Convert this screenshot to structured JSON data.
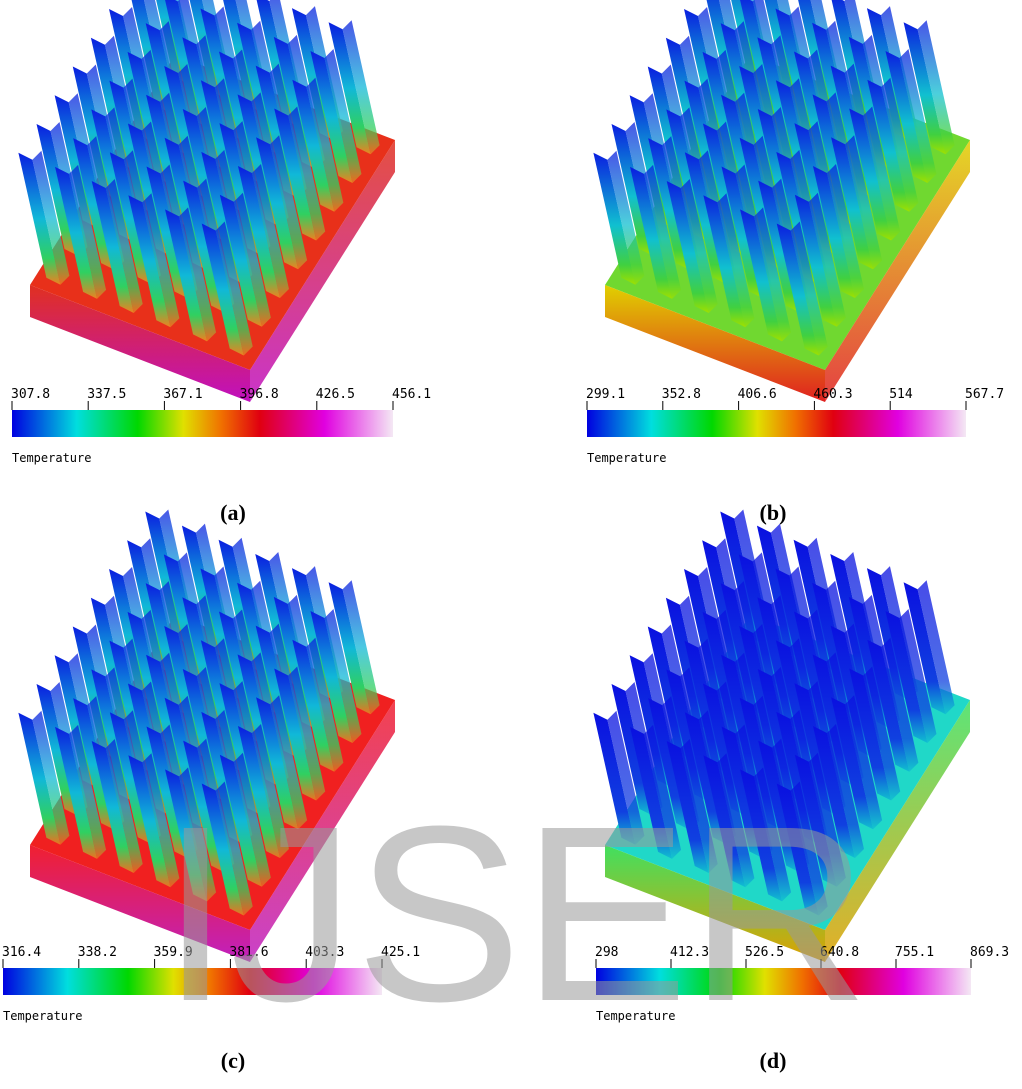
{
  "panels": [
    {
      "caption": "(a)",
      "colorbar": {
        "ticks": [
          307.8,
          337.5,
          367.1,
          396.8,
          426.5,
          456.1
        ],
        "title": "Temperature"
      }
    },
    {
      "caption": "(b)",
      "colorbar": {
        "ticks": [
          299.1,
          352.8,
          406.6,
          460.3,
          514,
          567.7
        ],
        "title": "Temperature"
      }
    },
    {
      "caption": "(c)",
      "colorbar": {
        "ticks": [
          316.4,
          338.2,
          359.9,
          381.6,
          403.3,
          425.1
        ],
        "title": "Temperature"
      }
    },
    {
      "caption": "(d)",
      "colorbar": {
        "ticks": [
          298,
          412.3,
          526.5,
          640.8,
          755.1,
          869.3
        ],
        "title": "Temperature"
      }
    }
  ],
  "watermark": "IJSER"
}
